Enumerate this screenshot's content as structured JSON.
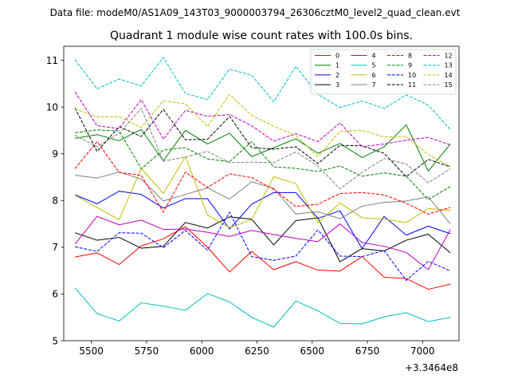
{
  "chart_data": {
    "type": "line",
    "suptitle": "Data file: modeM0/AS1A09_143T03_9000003794_26306cztM0_level2_quad_clean.evt",
    "title": "Quadrant 1 module wise count rates with 100.0s bins.",
    "xlabel": "",
    "ylabel": "",
    "x_offset_label": "+3.3464e8",
    "xlim": [
      5375,
      7165
    ],
    "ylim": [
      5,
      11.3
    ],
    "xticks": [
      5500,
      5750,
      6000,
      6250,
      6500,
      6750,
      7000
    ],
    "yticks": [
      5,
      6,
      7,
      8,
      9,
      10,
      11
    ],
    "grid": false,
    "legend_position": "top-right",
    "legend_columns": 4,
    "x": [
      5426,
      5526,
      5626,
      5726,
      5826,
      5926,
      6026,
      6126,
      6226,
      6326,
      6426,
      6526,
      6626,
      6726,
      6826,
      6926,
      7026,
      7126
    ],
    "series": [
      {
        "name": "0",
        "color": "#ff0000",
        "dash": "solid",
        "values": [
          6.79,
          6.88,
          6.63,
          7.03,
          7.18,
          7.44,
          7.0,
          6.47,
          6.91,
          6.52,
          6.69,
          6.51,
          6.49,
          6.8,
          6.36,
          6.33,
          6.1,
          6.21
        ]
      },
      {
        "name": "1",
        "color": "#008000",
        "dash": "solid",
        "values": [
          9.33,
          9.41,
          9.28,
          9.52,
          8.85,
          9.5,
          9.21,
          9.44,
          8.94,
          9.13,
          9.32,
          9.01,
          9.22,
          8.92,
          9.15,
          9.62,
          8.63,
          9.21
        ]
      },
      {
        "name": "2",
        "color": "#0000ff",
        "dash": "solid",
        "values": [
          8.12,
          7.93,
          8.2,
          8.13,
          7.84,
          8.04,
          8.04,
          7.39,
          7.92,
          8.17,
          8.17,
          7.62,
          7.78,
          6.97,
          7.66,
          7.26,
          7.45,
          7.29
        ]
      },
      {
        "name": "3",
        "color": "#000000",
        "dash": "solid",
        "values": [
          7.31,
          7.15,
          7.21,
          6.98,
          7.02,
          7.53,
          7.41,
          7.65,
          7.6,
          7.05,
          7.57,
          7.63,
          6.69,
          6.97,
          6.92,
          7.15,
          7.28,
          6.88
        ]
      },
      {
        "name": "4",
        "color": "#bf00bf",
        "dash": "solid",
        "values": [
          7.07,
          7.66,
          7.48,
          7.58,
          7.38,
          7.39,
          7.32,
          7.23,
          7.36,
          7.27,
          7.19,
          7.12,
          7.5,
          7.1,
          7.02,
          6.89,
          6.52,
          7.38
        ]
      },
      {
        "name": "5",
        "color": "#00bfbf",
        "dash": "solid",
        "values": [
          6.13,
          5.58,
          5.42,
          5.81,
          5.74,
          5.65,
          6.01,
          5.83,
          5.5,
          5.29,
          5.85,
          5.64,
          5.37,
          5.36,
          5.51,
          5.6,
          5.41,
          5.5
        ]
      },
      {
        "name": "6",
        "color": "#bfbf00",
        "dash": "solid",
        "values": [
          8.11,
          7.85,
          7.59,
          8.69,
          8.15,
          8.94,
          7.69,
          7.42,
          7.59,
          8.51,
          8.36,
          7.52,
          7.95,
          7.63,
          7.6,
          7.53,
          7.83,
          7.79
        ]
      },
      {
        "name": "7",
        "color": "#808080",
        "dash": "solid",
        "values": [
          8.54,
          8.48,
          8.61,
          8.46,
          7.99,
          8.13,
          8.27,
          8.03,
          8.4,
          8.26,
          7.71,
          7.76,
          7.61,
          7.88,
          7.96,
          7.99,
          8.08,
          7.5
        ]
      },
      {
        "name": "8",
        "color": "#ff0000",
        "dash": "dashed",
        "values": [
          8.68,
          9.26,
          8.6,
          8.54,
          7.75,
          8.61,
          8.28,
          8.57,
          8.49,
          8.24,
          7.87,
          7.92,
          8.15,
          8.17,
          8.12,
          7.94,
          7.71,
          7.85
        ]
      },
      {
        "name": "9",
        "color": "#008000",
        "dash": "dashed",
        "values": [
          9.45,
          9.51,
          9.49,
          8.68,
          9.08,
          9.13,
          8.89,
          8.83,
          9.26,
          8.72,
          8.69,
          8.62,
          8.74,
          8.52,
          8.59,
          8.52,
          8.02,
          8.3
        ]
      },
      {
        "name": "10",
        "color": "#0000ff",
        "dash": "dashed",
        "values": [
          7.01,
          6.91,
          7.31,
          7.3,
          6.99,
          7.36,
          6.94,
          7.75,
          6.8,
          6.72,
          6.81,
          7.37,
          6.81,
          6.8,
          6.93,
          6.29,
          6.7,
          6.49
        ]
      },
      {
        "name": "11",
        "color": "#000000",
        "dash": "dashed",
        "values": [
          9.98,
          9.05,
          9.58,
          9.37,
          9.95,
          9.3,
          9.31,
          9.8,
          9.13,
          9.1,
          9.15,
          8.79,
          9.18,
          9.17,
          9.01,
          8.51,
          8.88,
          8.72
        ]
      },
      {
        "name": "12",
        "color": "#bf00bf",
        "dash": "dashed",
        "values": [
          10.32,
          9.6,
          9.54,
          10.16,
          9.31,
          9.93,
          9.8,
          9.84,
          9.6,
          9.27,
          9.43,
          9.26,
          9.66,
          9.15,
          9.21,
          9.29,
          9.35,
          9.19
        ]
      },
      {
        "name": "13",
        "color": "#00bfbf",
        "dash": "dashed",
        "values": [
          11.01,
          10.39,
          10.6,
          10.45,
          11.06,
          10.29,
          10.16,
          10.81,
          10.68,
          10.11,
          10.87,
          10.27,
          9.99,
          10.13,
          9.97,
          10.26,
          10.04,
          9.52
        ]
      },
      {
        "name": "14",
        "color": "#bfbf00",
        "dash": "dashed",
        "values": [
          9.95,
          9.79,
          9.79,
          9.56,
          10.13,
          10.07,
          9.58,
          10.27,
          9.82,
          9.59,
          9.39,
          8.94,
          9.48,
          9.5,
          9.36,
          9.37,
          8.98,
          8.73
        ]
      },
      {
        "name": "15",
        "color": "#808080",
        "dash": "dashed",
        "values": [
          9.4,
          9.15,
          9.44,
          9.97,
          8.84,
          8.93,
          9.05,
          8.81,
          8.82,
          8.81,
          9.04,
          8.74,
          8.25,
          8.6,
          8.9,
          8.78,
          8.38,
          8.68
        ]
      }
    ]
  }
}
